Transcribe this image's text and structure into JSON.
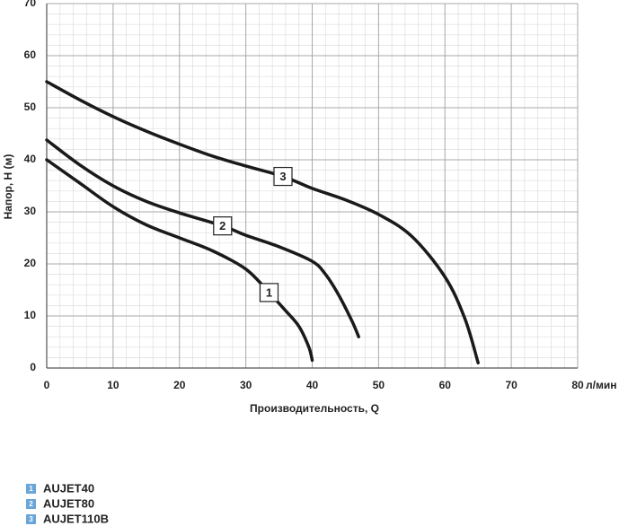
{
  "chart_data": {
    "type": "line",
    "x_label": "Производительность, Q",
    "x_unit": "л/мин",
    "y_label": "Напор, Н (м)",
    "xlim": [
      0,
      80
    ],
    "xticks": [
      0,
      10,
      20,
      30,
      40,
      50,
      60,
      70,
      80
    ],
    "ylim": [
      0,
      70
    ],
    "yticks": [
      0,
      10,
      20,
      30,
      40,
      50,
      60,
      70
    ],
    "grid": true,
    "series": [
      {
        "name": "AUJET40",
        "label": "1",
        "color": "#1a1a1a",
        "x": [
          0,
          5,
          10,
          15,
          20,
          25,
          30,
          33.5,
          36,
          38,
          39.5,
          40
        ],
        "values": [
          40,
          35.5,
          31,
          27.5,
          25,
          22.5,
          19,
          14.5,
          11,
          8,
          4,
          1.5
        ]
      },
      {
        "name": "AUJET80",
        "label": "2",
        "color": "#1a1a1a",
        "x": [
          0,
          5,
          10,
          15,
          20,
          26.5,
          30,
          35,
          40,
          42,
          44,
          46,
          47
        ],
        "values": [
          43.8,
          39,
          35,
          32,
          29.8,
          27.3,
          25.5,
          23.3,
          20.5,
          18,
          14,
          9,
          6
        ]
      },
      {
        "name": "AUJET110B",
        "label": "3",
        "color": "#1a1a1a",
        "x": [
          0,
          5,
          10,
          15,
          20,
          25,
          30,
          35.6,
          40,
          45,
          50,
          55,
          60,
          63,
          65
        ],
        "values": [
          55,
          51.5,
          48.3,
          45.5,
          43,
          40.7,
          38.8,
          36.8,
          34.5,
          32.3,
          29.5,
          25.3,
          17.5,
          9.5,
          1
        ]
      }
    ],
    "legend_color": "#6aa6d8"
  }
}
